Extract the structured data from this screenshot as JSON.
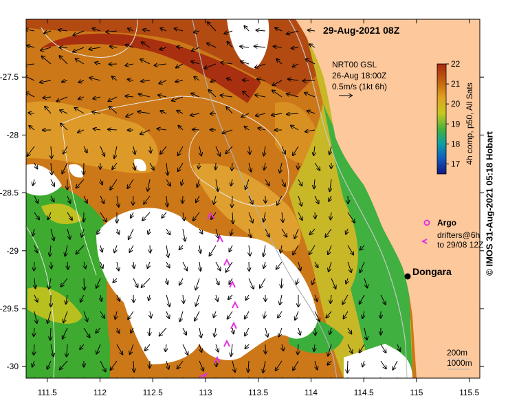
{
  "title": "29-Aug-2021 08Z",
  "credit": "©  IMOS 31-Aug-2021 05:18 Hobart",
  "current_legend": {
    "line1": "NRT00 GSL",
    "line2": "26-Aug 18:00Z",
    "line3": "0.5m/s (1kt 6h)"
  },
  "colorbar": {
    "label": "4h comp, p50, All Sats",
    "min": 16.5,
    "max": 22,
    "ticks": [
      "17",
      "18",
      "19",
      "20",
      "21",
      "22"
    ]
  },
  "argo_label": "Argo",
  "drifter_label_1": "drifters@6h",
  "drifter_label_2": "to 29/08 12Z",
  "place_label": "Dongara",
  "depth_label_1": "200m",
  "depth_label_2": "1000m",
  "x_ticks": [
    "111.5",
    "112",
    "112.5",
    "113",
    "113.5",
    "114",
    "114.5",
    "115",
    "115.5"
  ],
  "y_ticks": [
    "-27.5",
    "-28",
    "-28.5",
    "-29",
    "-29.5",
    "-30"
  ],
  "colors": {
    "land": "#fcc89c",
    "cloud": "#ffffff",
    "drifter": "#e030e0",
    "warm": "#c86a10",
    "cool": "#30b030"
  }
}
